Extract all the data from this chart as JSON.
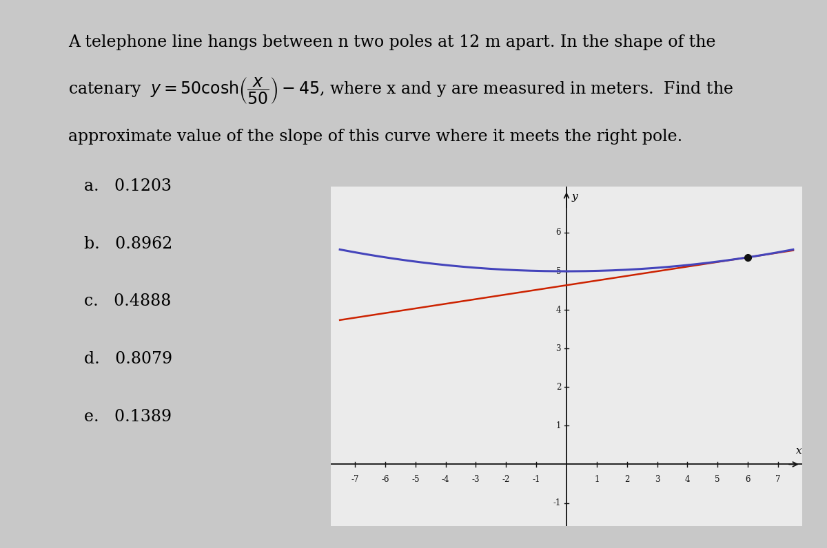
{
  "title_line1": "A telephone line hangs between n two poles at 12 m apart. In the shape of the",
  "title_line3": "approximate value of the slope of this curve where it meets the right pole.",
  "choices": [
    "a.   0.1203",
    "b.   0.8962",
    "c.   0.4888",
    "d.   0.8079",
    "e.   0.1389"
  ],
  "bg_color": "#c8c8c8",
  "card_color": "#ebebeb",
  "curve_color": "#4444bb",
  "tangent_color": "#cc2200",
  "dot_color": "#111111",
  "axis_color": "#111111",
  "xlim": [
    -7.8,
    7.8
  ],
  "ylim": [
    -1.6,
    7.2
  ],
  "xticks": [
    -7,
    -6,
    -5,
    -4,
    -3,
    -2,
    -1,
    1,
    2,
    3,
    4,
    5,
    6,
    7
  ],
  "yticks": [
    -1,
    1,
    2,
    3,
    4,
    5,
    6
  ],
  "x_right_pole": 6,
  "catenary_a": 50,
  "catenary_b": 45,
  "font_size_text": 17,
  "font_size_choices": 17
}
